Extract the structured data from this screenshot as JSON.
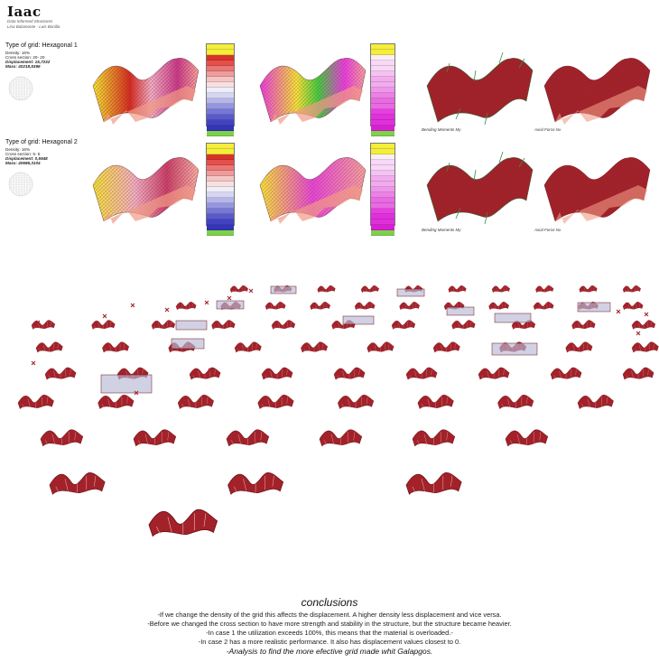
{
  "header": {
    "logo": "Iaac",
    "subtitle_1": "Data Informed Structures",
    "subtitle_2": "Lina Balamonte · Luis Bonilla"
  },
  "grids": [
    {
      "title": "Type of grid: Hexagonal 1",
      "density": "Density: 16%",
      "cross_section": "Cross section: 20- 20",
      "displacement": "Displacement: 15,7232",
      "mass": "Mass: 40218,5396",
      "caption_moment": "Bending Moments My",
      "caption_axial": "Axial Force Nx"
    },
    {
      "title": "Type of grid: Hexagonal 2",
      "density": "Density: 16%",
      "cross_section": "Cross section: 5- 5",
      "displacement": "Displacement: 0,5948",
      "mass": "Mass: 40686,3104",
      "caption_moment": "Bending Moments My",
      "caption_axial": "Axial Force Nx"
    }
  ],
  "colors": {
    "structure_red": "#a3222a",
    "legend_green": "#7ed14a",
    "legend_yellow": "#f4ee3a",
    "legend_magenta": "#e93de2",
    "box_highlight": "#b8b8d6"
  },
  "conclusions": {
    "title": "conclusions",
    "lines": [
      "-If we change the density of the grid this affects the displacement. A higher density less displacement and vice versa.",
      "-Before we changed the cross section to have more strength and stability in the structure, but the structure became heavier.",
      "-In case 1 the utilization exceeds 100%, this means that the material is overloaded.-",
      "-In case 2 has a more realistic performance. It also has displacement values closest to 0."
    ],
    "final": "-Analysis to find the more efective grid made whit Galapgos."
  }
}
